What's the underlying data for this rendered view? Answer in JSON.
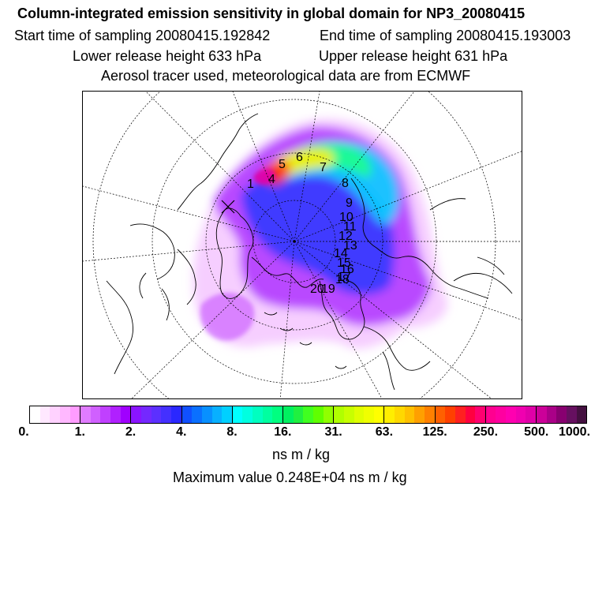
{
  "header": {
    "title": "Column-integrated emission sensitivity in global domain for NP3_20080415",
    "start_time": "Start time of sampling 20080415.192842",
    "end_time": "End time of sampling 20080415.193003",
    "lower_height": "Lower release height  633 hPa",
    "upper_height": "Upper release height  631 hPa",
    "tracer_info": "Aerosol tracer used, meteorological data are from ECMWF"
  },
  "map": {
    "projection": "north-polar-stereographic",
    "trajectory_labels": [
      "1",
      "4",
      "5",
      "6",
      "7",
      "8",
      "9",
      "10",
      "11",
      "12",
      "13",
      "14",
      "15",
      "16",
      "17",
      "18",
      "19",
      "20"
    ],
    "plume_colors": [
      "#cc44ff",
      "#7a1cff",
      "#2a38ff",
      "#00d8ff",
      "#1eff8c",
      "#c8ff00",
      "#ffee00",
      "#ff3300"
    ]
  },
  "colorbar": {
    "tick_labels": [
      "0.",
      "1.",
      "2.",
      "4.",
      "8.",
      "16.",
      "31.",
      "63.",
      "125.",
      "250.",
      "500.",
      "1000."
    ],
    "colors": [
      "#ffffff",
      "#ffe8ff",
      "#ffd2ff",
      "#ffb8ff",
      "#ff9cff",
      "#e07cff",
      "#d060ff",
      "#c040ff",
      "#b020ff",
      "#a000ff",
      "#8a14ff",
      "#7428ff",
      "#5c30ff",
      "#4430ff",
      "#2a28ff",
      "#1050ff",
      "#0a70ff",
      "#0890ff",
      "#08b0ff",
      "#00d0ff",
      "#00ffff",
      "#00ffe0",
      "#00ffc0",
      "#00ffa0",
      "#00ff80",
      "#00f060",
      "#20f040",
      "#40ff20",
      "#60ff00",
      "#90ff00",
      "#b0ff00",
      "#c8ff00",
      "#e0ff00",
      "#f0ff00",
      "#ffff00",
      "#ffee00",
      "#ffd800",
      "#ffc000",
      "#ffa000",
      "#ff8000",
      "#ff6000",
      "#ff4000",
      "#ff2020",
      "#ff0040",
      "#ff0070",
      "#ff0090",
      "#ff00a0",
      "#ff00b0",
      "#f000b0",
      "#e000a8",
      "#cc0099",
      "#aa0088",
      "#880070",
      "#661060",
      "#441040"
    ],
    "units": "ns m / kg"
  },
  "footer": {
    "max_value": "Maximum value  0.248E+04 ns m / kg"
  }
}
